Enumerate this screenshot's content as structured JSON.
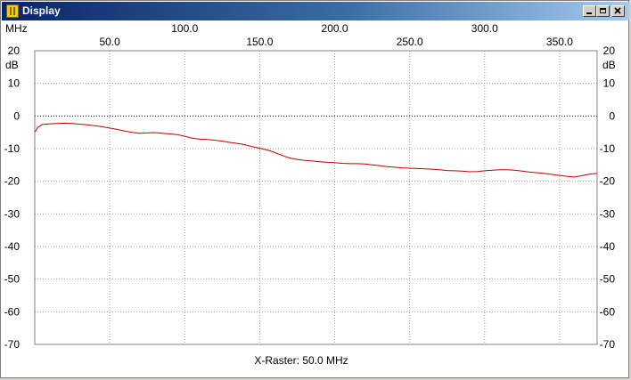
{
  "window": {
    "title": "Display",
    "icon": "app-icon"
  },
  "titlebar_buttons": [
    "minimize-icon",
    "maximize-icon",
    "close-icon"
  ],
  "colors": {
    "title_start": "#0a246a",
    "title_end": "#a6caf0",
    "trace": "#c00000",
    "grid": "#a0a0a0",
    "reference_line": "#000000"
  },
  "chart_data": {
    "type": "line",
    "title": "",
    "x_unit": "MHz",
    "y_unit": "dB",
    "xlim": [
      0,
      375
    ],
    "ylim": [
      -70,
      20
    ],
    "x_top_ticks": [
      "100.0",
      "200.0",
      "300.0"
    ],
    "x_top_tick_values": [
      100,
      200,
      300
    ],
    "x_bottom_ticks": [
      "50.0",
      "150.0",
      "250.0",
      "350.0"
    ],
    "x_bottom_tick_values": [
      50,
      150,
      250,
      350
    ],
    "y_ticks": [
      "20",
      "10",
      "0",
      "-10",
      "-20",
      "-30",
      "-40",
      "-50",
      "-60",
      "-70"
    ],
    "y_tick_values": [
      20,
      10,
      0,
      -10,
      -20,
      -30,
      -40,
      -50,
      -60,
      -70
    ],
    "reference_level": 0,
    "grid": true,
    "footer": "X-Raster: 50.0 MHz",
    "series": [
      {
        "color": "#c00000",
        "x": [
          0,
          2,
          5,
          10,
          15,
          20,
          25,
          30,
          35,
          40,
          45,
          50,
          55,
          60,
          65,
          70,
          75,
          80,
          85,
          90,
          95,
          100,
          105,
          110,
          115,
          120,
          125,
          130,
          135,
          140,
          145,
          150,
          155,
          160,
          165,
          170,
          175,
          180,
          185,
          190,
          195,
          200,
          205,
          210,
          215,
          220,
          225,
          230,
          235,
          240,
          245,
          250,
          255,
          260,
          265,
          270,
          275,
          280,
          285,
          290,
          295,
          300,
          305,
          310,
          315,
          320,
          325,
          330,
          335,
          340,
          345,
          350,
          355,
          360,
          365,
          370,
          375
        ],
        "y": [
          -5.0,
          -3.5,
          -2.6,
          -2.4,
          -2.3,
          -2.2,
          -2.3,
          -2.5,
          -2.7,
          -3.0,
          -3.3,
          -3.7,
          -4.1,
          -4.6,
          -5.0,
          -5.3,
          -5.2,
          -5.1,
          -5.3,
          -5.5,
          -5.7,
          -6.2,
          -6.8,
          -7.1,
          -7.2,
          -7.4,
          -7.7,
          -8.1,
          -8.4,
          -8.8,
          -9.4,
          -9.9,
          -10.4,
          -11.2,
          -12.1,
          -12.9,
          -13.3,
          -13.6,
          -13.8,
          -14.0,
          -14.2,
          -14.3,
          -14.5,
          -14.6,
          -14.6,
          -14.7,
          -15.0,
          -15.2,
          -15.5,
          -15.7,
          -15.9,
          -16.0,
          -16.1,
          -16.2,
          -16.3,
          -16.5,
          -16.7,
          -16.8,
          -16.9,
          -17.1,
          -17.0,
          -16.8,
          -16.6,
          -16.5,
          -16.5,
          -16.6,
          -16.9,
          -17.2,
          -17.4,
          -17.6,
          -17.9,
          -18.2,
          -18.5,
          -18.7,
          -18.3,
          -17.8,
          -17.6
        ]
      }
    ]
  }
}
